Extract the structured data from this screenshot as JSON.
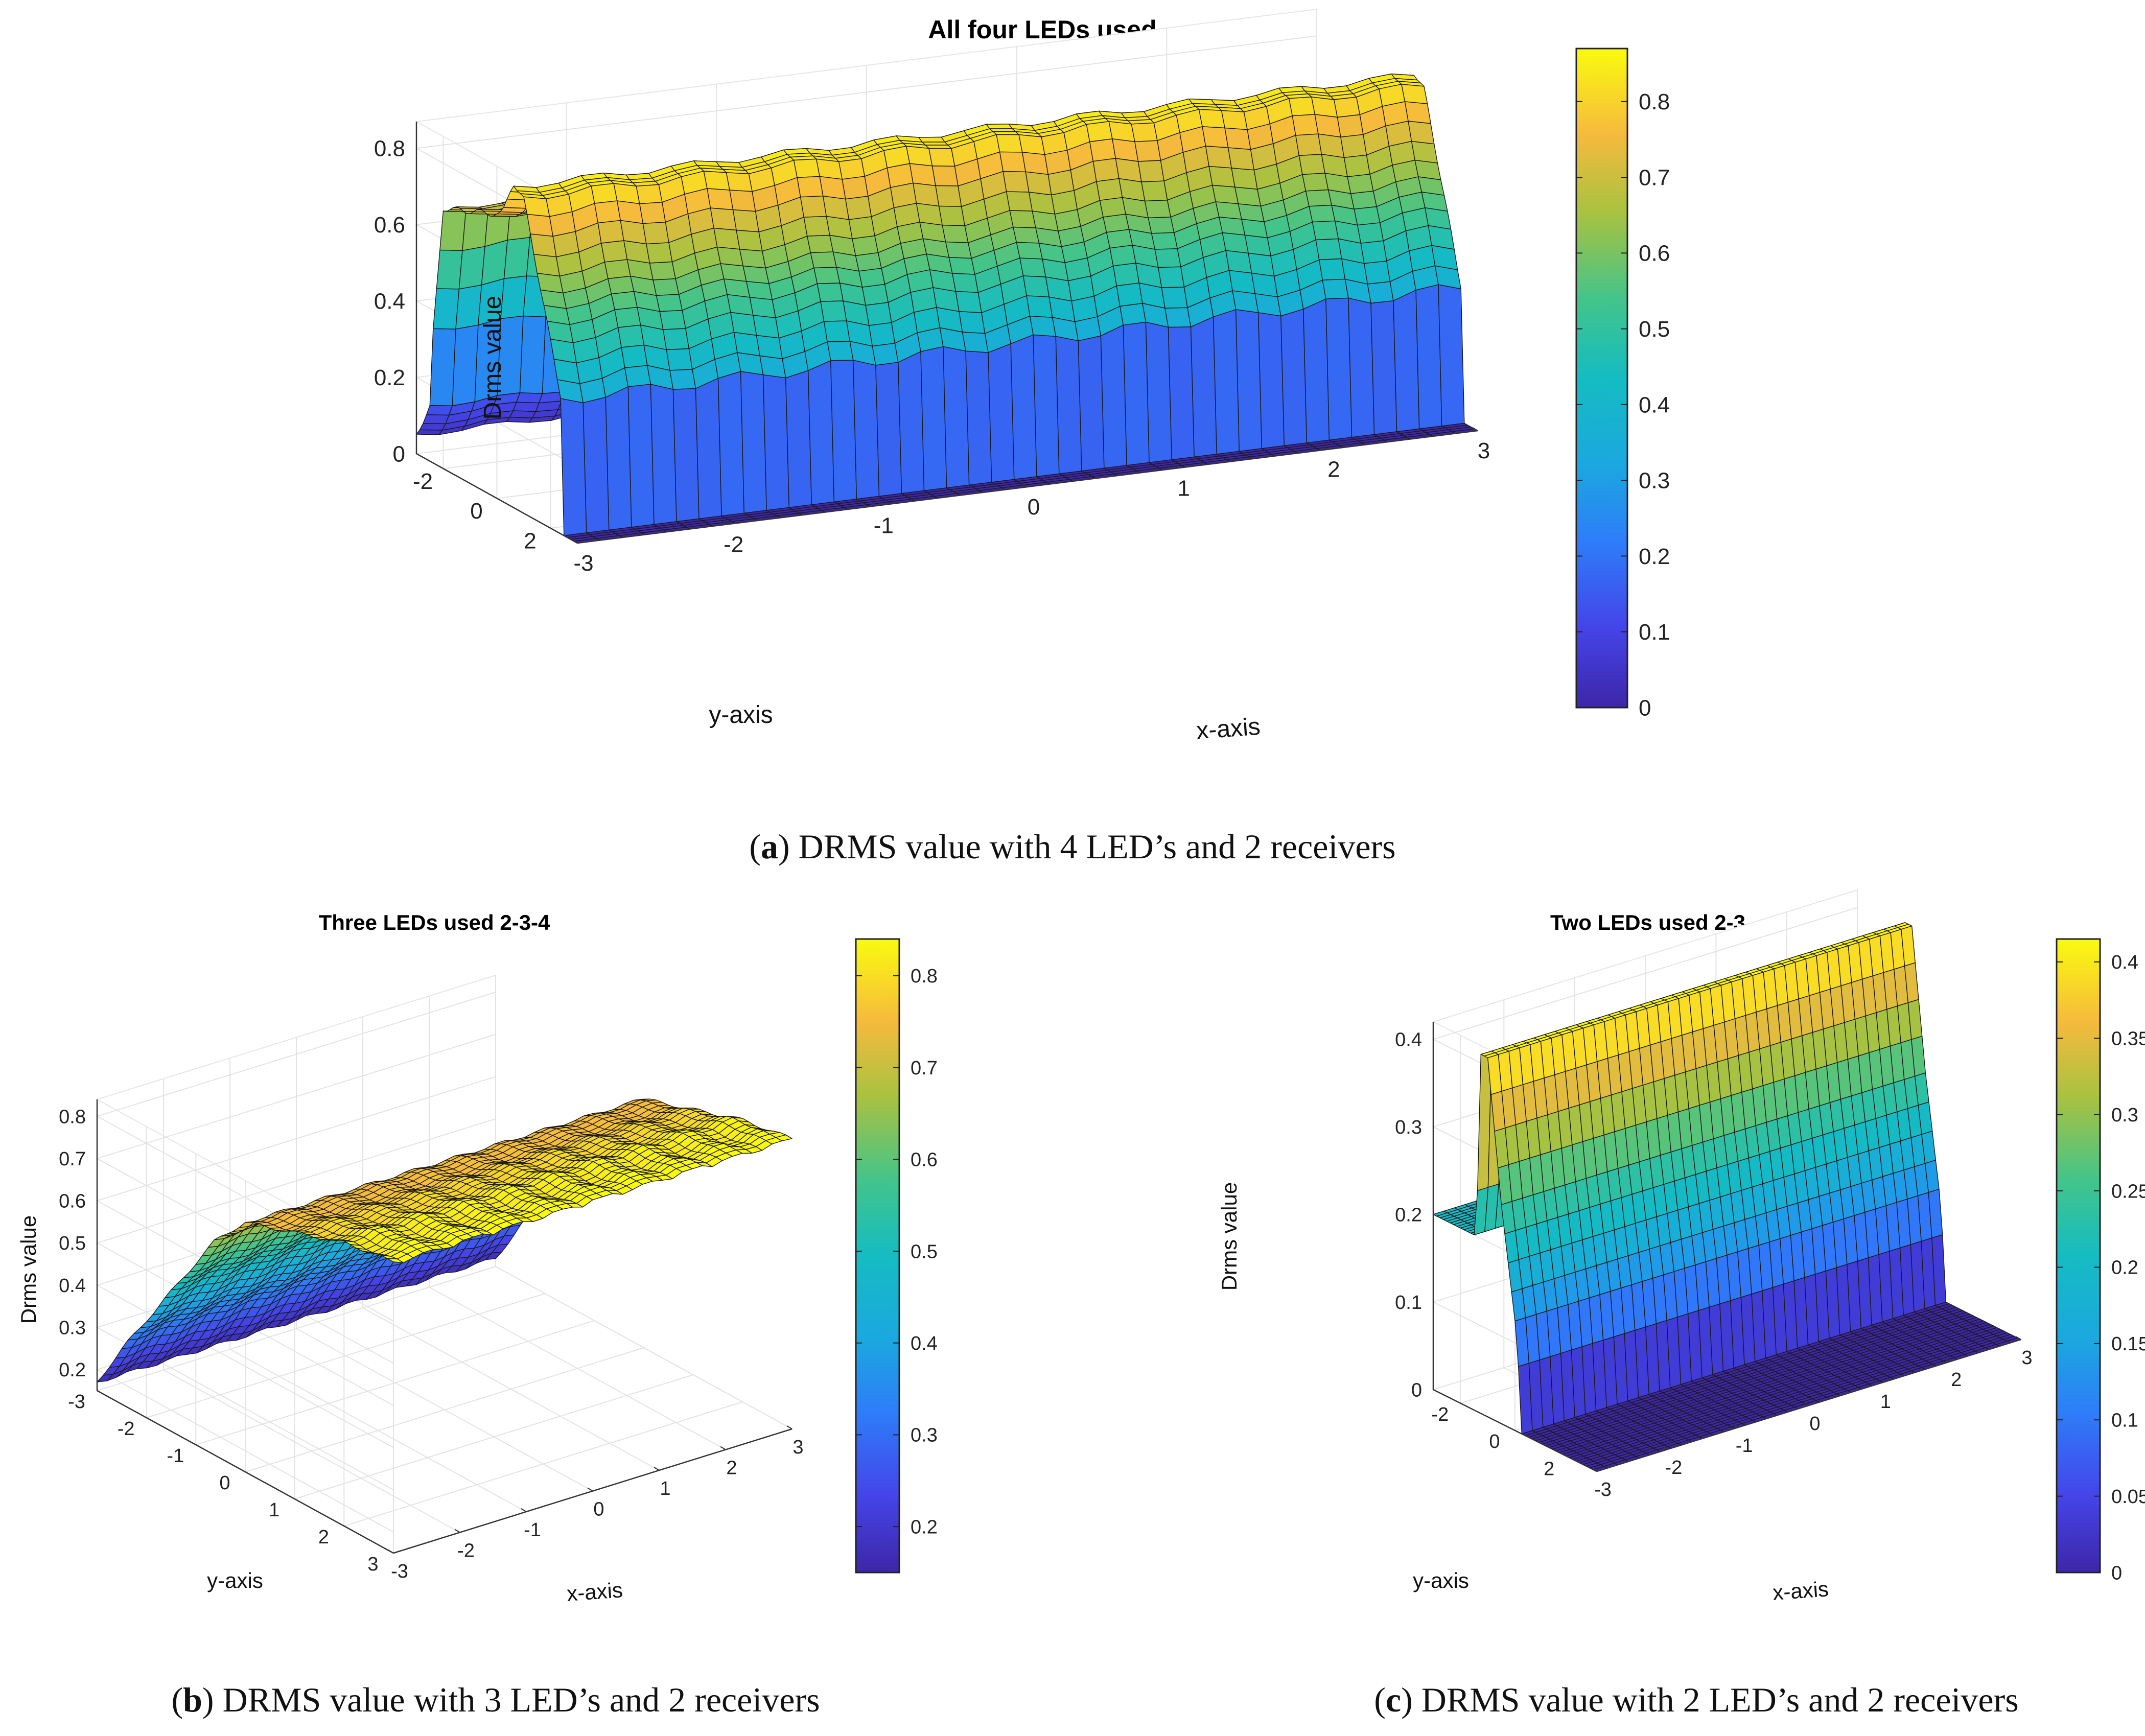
{
  "chart_data": [
    {
      "id": "a",
      "type": "surface3d",
      "title": "All four LEDs used",
      "xlabel": "x-axis",
      "ylabel": "y-axis",
      "zlabel": "Drms value",
      "x_ticks": [
        -3,
        -2,
        -1,
        0,
        1,
        2,
        3
      ],
      "y_ticks": [
        -2,
        0,
        2
      ],
      "z_ticks": [
        0,
        0.2,
        0.4,
        0.6,
        0.8
      ],
      "xlim": [
        -3,
        3
      ],
      "ylim": [
        -3,
        3
      ],
      "zlim": [
        0,
        0.87
      ],
      "colorbar": {
        "ticks": [
          0,
          0.1,
          0.2,
          0.3,
          0.4,
          0.5,
          0.6,
          0.7,
          0.8
        ],
        "range": [
          0,
          0.87
        ]
      },
      "surface_profile": {
        "y_values": [
          3,
          2.5,
          2.4,
          1.6,
          1.0,
          0.6,
          0.2,
          -2.0,
          -2.4,
          -2.5,
          -3
        ],
        "z_values": [
          0,
          0,
          0.35,
          0.62,
          0.82,
          0.85,
          0.75,
          0.68,
          0.32,
          0.14,
          0.05
        ]
      },
      "caption": {
        "letter": "a",
        "text": ") DRMS value with 4 LED’s and 2 receivers"
      }
    },
    {
      "id": "b",
      "type": "surface3d",
      "title": "Three LEDs used 2-3-4",
      "xlabel": "x-axis",
      "ylabel": "y-axis",
      "zlabel": "Drms value",
      "x_ticks": [
        -3,
        -2,
        -1,
        0,
        1,
        2,
        3
      ],
      "y_ticks": [
        -3,
        -2,
        -1,
        0,
        1,
        2,
        3
      ],
      "z_ticks": [
        0.2,
        0.3,
        0.4,
        0.5,
        0.6,
        0.7,
        0.8
      ],
      "xlim": [
        -3,
        3
      ],
      "ylim": [
        -3,
        3
      ],
      "zlim": [
        0.15,
        0.84
      ],
      "colorbar": {
        "ticks": [
          0.2,
          0.3,
          0.4,
          0.5,
          0.6,
          0.7,
          0.8
        ],
        "range": [
          0.15,
          0.84
        ]
      },
      "surface_profile": {
        "y_values": [
          3,
          2.0,
          1.0,
          0.0,
          -0.6,
          -1.2,
          -1.8,
          -2.4,
          -3
        ],
        "z_values": [
          0.84,
          0.82,
          0.78,
          0.74,
          0.66,
          0.54,
          0.42,
          0.3,
          0.17
        ]
      },
      "caption": {
        "letter": "b",
        "text": ") DRMS value with 3 LED’s and 2 receivers"
      }
    },
    {
      "id": "c",
      "type": "surface3d",
      "title": "Two LEDs used 2-3",
      "xlabel": "x-axis",
      "ylabel": "y-axis",
      "zlabel": "Drms value",
      "x_ticks": [
        -3,
        -2,
        -1,
        0,
        1,
        2,
        3
      ],
      "y_ticks": [
        -2,
        0,
        2
      ],
      "z_ticks": [
        0,
        0.1,
        0.2,
        0.3,
        0.4
      ],
      "xlim": [
        -3,
        3
      ],
      "ylim": [
        -3,
        3
      ],
      "zlim": [
        0,
        0.42
      ],
      "colorbar": {
        "ticks": [
          0,
          0.05,
          0.1,
          0.15,
          0.2,
          0.25,
          0.3,
          0.35,
          0.4
        ],
        "range": [
          0,
          0.415
        ]
      },
      "surface_profile": {
        "y_values": [
          3,
          0.2,
          0.1,
          -0.5,
          -1.0,
          -1.3,
          -1.4,
          -3
        ],
        "z_values": [
          0,
          0,
          0.1,
          0.25,
          0.41,
          0.41,
          0.2,
          0.2
        ]
      },
      "caption": {
        "letter": "c",
        "text": ") DRMS value with 2 LED’s and 2 receivers"
      }
    }
  ]
}
